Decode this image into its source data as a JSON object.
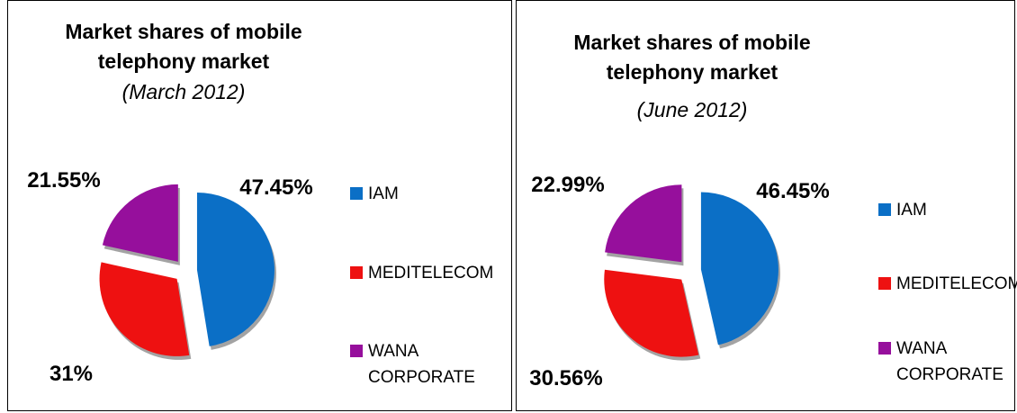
{
  "chart_data": [
    {
      "type": "pie",
      "title": "Market shares of mobile telephony market",
      "subtitle": "(March 2012)",
      "categories": [
        "IAM",
        "MEDITELECOM",
        "WANA CORPORATE"
      ],
      "values": [
        47.45,
        31,
        21.55
      ],
      "value_labels": [
        "47.45%",
        "31%",
        "21.55%"
      ],
      "colors": [
        "#0b6fc6",
        "#ee1111",
        "#960f9c"
      ],
      "legend": "right"
    },
    {
      "type": "pie",
      "title": "Market shares of mobile telephony market",
      "subtitle": "(June 2012)",
      "categories": [
        "IAM",
        "MEDITELECOM",
        "WANA CORPORATE"
      ],
      "values": [
        46.45,
        30.56,
        22.99
      ],
      "value_labels": [
        "46.45%",
        "30.56%",
        "22.99%"
      ],
      "colors": [
        "#0b6fc6",
        "#ee1111",
        "#960f9c"
      ],
      "legend": "right"
    }
  ]
}
